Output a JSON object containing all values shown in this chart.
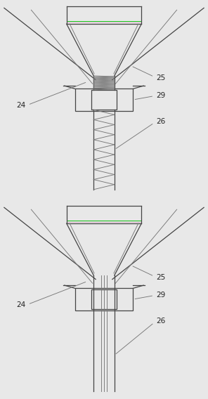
{
  "bg_color": "#e8e8e8",
  "line_color": "#444444",
  "line_color2": "#777777",
  "green_color": "#00bb00",
  "lw": 0.9,
  "lw_thin": 0.65,
  "fig_w": 2.96,
  "fig_h": 5.68,
  "label_color": "#222222",
  "label_fs": 7.5,
  "dpi": 100
}
